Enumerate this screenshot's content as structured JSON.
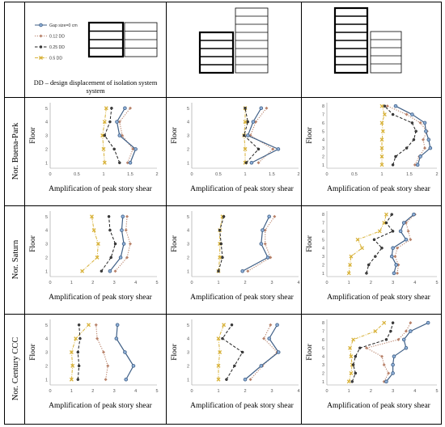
{
  "legend": {
    "entries": [
      {
        "label": "Gap size=0 cm",
        "color": "#3f5f86",
        "dash": "solid",
        "marker": "circle"
      },
      {
        "label": "0.12 DD",
        "color": "#b8826a",
        "dash": "dot",
        "marker": "diamond"
      },
      {
        "label": "0.25 DD",
        "color": "#222222",
        "dash": "dash",
        "marker": "circle-dark"
      },
      {
        "label": "0.5 DD",
        "color": "#d8b23a",
        "dash": "dashdot",
        "marker": "x"
      }
    ],
    "note": "DD – design displacement of isolation system"
  },
  "rows": [
    {
      "label": "Nor. Buena-Park"
    },
    {
      "label": "Nor. Saturn"
    },
    {
      "label": "Nor. Century CCC"
    }
  ],
  "xlabel": "Amplification of peak story shear",
  "ylabel": "Floor",
  "chart_data": [
    {
      "type": "line",
      "row": "Nor. Buena-Park",
      "col": 1,
      "xlim": [
        0,
        2
      ],
      "xticks": [
        0,
        0.5,
        1,
        1.5,
        2
      ],
      "yticks": [
        1,
        2,
        3,
        4,
        5
      ],
      "floors": [
        1,
        2,
        3,
        4,
        5
      ],
      "series": [
        {
          "name": "Gap size=0 cm",
          "values": [
            1.5,
            1.6,
            1.3,
            1.25,
            1.4
          ]
        },
        {
          "name": "0.12 DD",
          "values": [
            1.45,
            1.55,
            1.35,
            1.3,
            1.5
          ]
        },
        {
          "name": "0.25 DD",
          "values": [
            1.3,
            1.2,
            1.02,
            1.12,
            1.15
          ]
        },
        {
          "name": "0.5 DD",
          "values": [
            1.02,
            1.0,
            0.98,
            1.02,
            1.05
          ]
        }
      ]
    },
    {
      "type": "line",
      "row": "Nor. Buena-Park",
      "col": 2,
      "xlim": [
        0,
        2
      ],
      "xticks": [
        0,
        0.5,
        1,
        1.5,
        2
      ],
      "yticks": [
        1,
        2,
        3,
        4,
        5
      ],
      "floors": [
        1,
        2,
        3,
        4,
        5
      ],
      "series": [
        {
          "name": "Gap size=0 cm",
          "values": [
            1.12,
            1.62,
            1.05,
            1.15,
            1.3
          ]
        },
        {
          "name": "0.12 DD",
          "values": [
            1.25,
            1.52,
            1.1,
            1.2,
            1.4
          ]
        },
        {
          "name": "0.25 DD",
          "values": [
            1.02,
            1.25,
            0.98,
            1.05,
            1.0
          ]
        },
        {
          "name": "0.5 DD",
          "values": [
            1.0,
            1.0,
            0.98,
            1.0,
            1.0
          ]
        }
      ]
    },
    {
      "type": "line",
      "row": "Nor. Buena-Park",
      "col": 3,
      "xlim": [
        0,
        2
      ],
      "xticks": [
        0,
        0.5,
        1,
        1.5,
        2
      ],
      "yticks": [
        1,
        2,
        3,
        4,
        5,
        6,
        7,
        8
      ],
      "floors": [
        1,
        2,
        3,
        4,
        5,
        6,
        7,
        8
      ],
      "series": [
        {
          "name": "Gap size=0 cm",
          "values": [
            1.65,
            1.7,
            1.88,
            1.85,
            1.8,
            1.78,
            1.55,
            1.25
          ]
        },
        {
          "name": "0.12 DD",
          "values": [
            1.6,
            1.68,
            1.78,
            1.75,
            1.82,
            1.7,
            1.45,
            1.1
          ]
        },
        {
          "name": "0.25 DD",
          "values": [
            1.2,
            1.25,
            1.45,
            1.58,
            1.62,
            1.55,
            1.2,
            1.05
          ]
        },
        {
          "name": "0.5 DD",
          "values": [
            1.0,
            1.0,
            1.0,
            1.0,
            1.02,
            1.0,
            1.05,
            1.0
          ]
        }
      ]
    },
    {
      "type": "line",
      "row": "Nor. Saturn",
      "col": 1,
      "xlim": [
        0,
        5
      ],
      "xticks": [
        0,
        1,
        2,
        3,
        4,
        5
      ],
      "yticks": [
        1,
        2,
        3,
        4,
        5
      ],
      "floors": [
        1,
        2,
        3,
        4,
        5
      ],
      "series": [
        {
          "name": "Gap size=0 cm",
          "values": [
            2.8,
            3.3,
            3.45,
            3.35,
            3.4
          ]
        },
        {
          "name": "0.12 DD",
          "values": [
            3.05,
            3.6,
            3.75,
            3.55,
            3.6
          ]
        },
        {
          "name": "0.25 DD",
          "values": [
            2.4,
            2.85,
            3.05,
            2.8,
            2.75
          ]
        },
        {
          "name": "0.5 DD",
          "values": [
            1.5,
            2.2,
            2.25,
            2.05,
            1.95
          ]
        }
      ]
    },
    {
      "type": "line",
      "row": "Nor. Saturn",
      "col": 2,
      "xlim": [
        0,
        4
      ],
      "xticks": [
        0,
        1,
        2,
        3,
        4
      ],
      "yticks": [
        1,
        2,
        3,
        4,
        5
      ],
      "floors": [
        1,
        2,
        3,
        4,
        5
      ],
      "series": [
        {
          "name": "Gap size=0 cm",
          "values": [
            1.9,
            2.85,
            2.6,
            2.65,
            2.9
          ]
        },
        {
          "name": "0.12 DD",
          "values": [
            2.1,
            2.95,
            2.75,
            2.75,
            3.1
          ]
        },
        {
          "name": "0.25 DD",
          "values": [
            1.0,
            1.15,
            1.1,
            1.05,
            1.2
          ]
        },
        {
          "name": "0.5 DD",
          "values": [
            1.0,
            1.05,
            1.05,
            1.05,
            1.15
          ]
        }
      ]
    },
    {
      "type": "line",
      "row": "Nor. Saturn",
      "col": 3,
      "xlim": [
        0,
        5
      ],
      "xticks": [
        0,
        1,
        2,
        3,
        4,
        5
      ],
      "yticks": [
        1,
        2,
        3,
        4,
        5,
        6,
        7,
        8
      ],
      "floors": [
        1,
        2,
        3,
        4,
        5,
        6,
        7,
        8
      ],
      "series": [
        {
          "name": "Gap size=0 cm",
          "values": [
            3.05,
            3.15,
            2.95,
            3.0,
            3.6,
            3.35,
            3.5,
            3.95
          ]
        },
        {
          "name": "0.12 DD",
          "values": [
            3.2,
            3.25,
            3.1,
            3.2,
            3.8,
            3.7,
            3.6,
            4.0
          ]
        },
        {
          "name": "0.25 DD",
          "values": [
            1.8,
            1.9,
            2.2,
            2.5,
            2.15,
            3.0,
            2.7,
            2.95
          ]
        },
        {
          "name": "0.5 DD",
          "values": [
            1.0,
            1.05,
            1.1,
            1.6,
            1.4,
            2.4,
            2.6,
            2.7
          ]
        }
      ]
    },
    {
      "type": "line",
      "row": "Nor. Century CCC",
      "col": 1,
      "xlim": [
        0,
        5
      ],
      "xticks": [
        0,
        1,
        2,
        3,
        4,
        5
      ],
      "yticks": [
        1,
        2,
        3,
        4,
        5
      ],
      "floors": [
        1,
        2,
        3,
        4,
        5
      ],
      "series": [
        {
          "name": "Gap size=0 cm",
          "values": [
            3.55,
            3.9,
            3.5,
            3.1,
            3.15
          ]
        },
        {
          "name": "0.12 DD",
          "values": [
            2.6,
            2.7,
            2.5,
            2.2,
            2.15
          ]
        },
        {
          "name": "0.25 DD",
          "values": [
            1.3,
            1.35,
            1.3,
            1.4,
            1.35
          ]
        },
        {
          "name": "0.5 DD",
          "values": [
            1.0,
            1.05,
            1.0,
            1.2,
            1.8
          ]
        }
      ]
    },
    {
      "type": "line",
      "row": "Nor. Century CCC",
      "col": 2,
      "xlim": [
        0,
        4
      ],
      "xticks": [
        0,
        1,
        2,
        3,
        4
      ],
      "yticks": [
        1,
        2,
        3,
        4,
        5
      ],
      "floors": [
        1,
        2,
        3,
        4,
        5
      ],
      "series": [
        {
          "name": "Gap size=0 cm",
          "values": [
            2.0,
            2.6,
            3.25,
            2.9,
            3.2
          ]
        },
        {
          "name": "0.12 DD",
          "values": [
            2.2,
            2.65,
            3.2,
            2.7,
            2.95
          ]
        },
        {
          "name": "0.25 DD",
          "values": [
            1.3,
            1.6,
            1.9,
            1.15,
            1.5
          ]
        },
        {
          "name": "0.5 DD",
          "values": [
            1.0,
            1.0,
            1.05,
            1.0,
            1.2
          ]
        }
      ]
    },
    {
      "type": "line",
      "row": "Nor. Century CCC",
      "col": 3,
      "xlim": [
        0,
        5
      ],
      "xticks": [
        0,
        1,
        2,
        3,
        4,
        5
      ],
      "yticks": [
        1,
        2,
        3,
        4,
        5,
        6,
        7,
        8
      ],
      "floors": [
        1,
        2,
        3,
        4,
        5,
        6,
        7,
        8
      ],
      "series": [
        {
          "name": "Gap size=0 cm",
          "values": [
            2.7,
            3.0,
            3.0,
            3.05,
            3.6,
            3.5,
            3.8,
            4.6
          ]
        },
        {
          "name": "0.12 DD",
          "values": [
            2.6,
            2.8,
            2.6,
            2.5,
            1.8,
            3.25,
            3.6,
            3.8
          ]
        },
        {
          "name": "0.25 DD",
          "values": [
            1.15,
            1.3,
            1.2,
            1.3,
            1.5,
            2.7,
            2.9,
            3.0
          ]
        },
        {
          "name": "0.5 DD",
          "values": [
            1.0,
            1.1,
            1.15,
            1.1,
            1.05,
            1.2,
            2.2,
            2.6
          ]
        }
      ]
    }
  ]
}
